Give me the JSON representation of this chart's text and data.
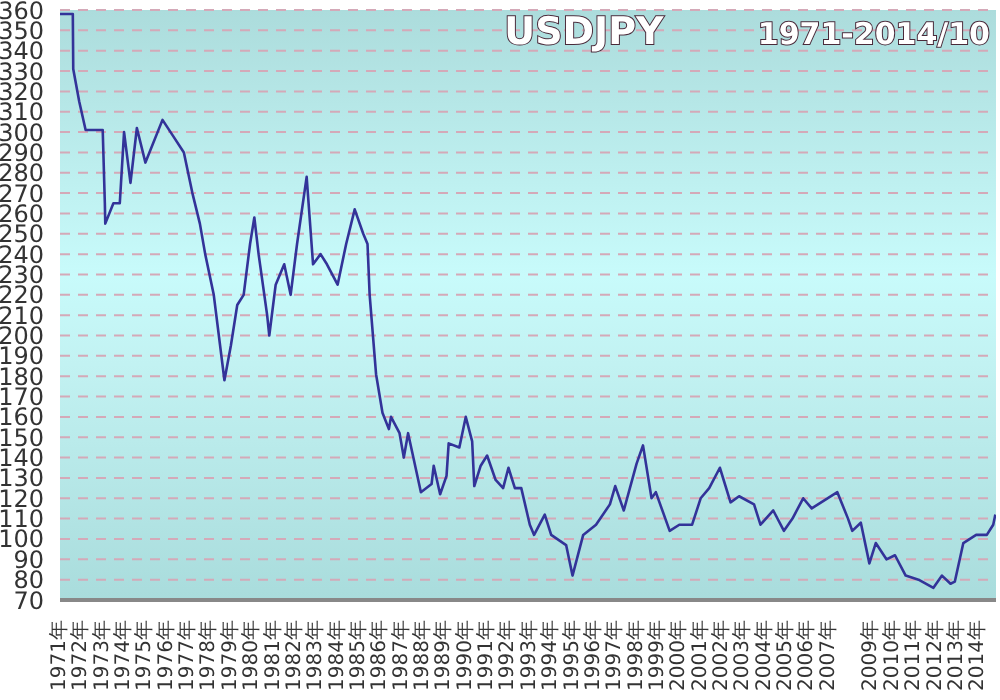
{
  "chart_data": {
    "type": "line",
    "title": "USDJPY",
    "subtitle": "1971-2014/10",
    "x": [
      1971.0,
      1971.6,
      1971.62,
      1971.9,
      1972.2,
      1972.6,
      1973.0,
      1973.1,
      1973.12,
      1973.5,
      1973.8,
      1974.0,
      1974.3,
      1974.6,
      1975.0,
      1975.8,
      1976.3,
      1976.8,
      1977.2,
      1977.55,
      1977.8,
      1978.2,
      1978.7,
      1979.0,
      1979.3,
      1979.6,
      1979.9,
      1980.1,
      1980.3,
      1980.7,
      1980.8,
      1981.1,
      1981.5,
      1981.8,
      1982.1,
      1982.55,
      1982.85,
      1983.2,
      1983.5,
      1984.0,
      1984.4,
      1984.8,
      1985.2,
      1985.4,
      1985.5,
      1985.8,
      1986.1,
      1986.4,
      1986.5,
      1986.9,
      1987.1,
      1987.3,
      1987.9,
      1988.4,
      1988.5,
      1988.8,
      1989.1,
      1989.2,
      1989.7,
      1990.0,
      1990.3,
      1990.4,
      1990.7,
      1991.0,
      1991.4,
      1991.75,
      1992.0,
      1992.3,
      1992.6,
      1993.0,
      1993.2,
      1993.7,
      1994.0,
      1994.7,
      1995.0,
      1995.5,
      1996.1,
      1996.75,
      1997.0,
      1997.4,
      1998.0,
      1998.3,
      1998.7,
      1998.9,
      1999.55,
      2000.0,
      2000.6,
      2001.0,
      2001.4,
      2001.9,
      2002.4,
      2002.8,
      2003.5,
      2003.8,
      2004.4,
      2004.9,
      2005.3,
      2005.8,
      2006.2,
      2007.4,
      2007.9,
      2008.1,
      2008.5,
      2008.9,
      2009.2,
      2009.7,
      2010.1,
      2010.6,
      2011.2,
      2011.9,
      2012.3,
      2012.7,
      2012.9,
      2013.3,
      2013.9,
      2014.4,
      2014.7,
      2014.8
    ],
    "series": [
      {
        "color": "#333399",
        "values": [
          358,
          358,
          331,
          315,
          301,
          301,
          301,
          265,
          255,
          265,
          265,
          300,
          275,
          302,
          285,
          306,
          298,
          290,
          270,
          255,
          240,
          220,
          178,
          195,
          215,
          220,
          245,
          258,
          240,
          210,
          200,
          225,
          235,
          220,
          245,
          278,
          235,
          240,
          235,
          225,
          245,
          262,
          250,
          245,
          220,
          181,
          162,
          154,
          160,
          152,
          140,
          152,
          123,
          127,
          136,
          122,
          131,
          147,
          145,
          160,
          148,
          126,
          136,
          141,
          129,
          125,
          135,
          125,
          125,
          107,
          102,
          112,
          102,
          97,
          82,
          102,
          107,
          117,
          126,
          114,
          137,
          146,
          120,
          123,
          104,
          107,
          107,
          120,
          125,
          135,
          118,
          121,
          117,
          107,
          114,
          104,
          110,
          120,
          115,
          123,
          110,
          104,
          108,
          88,
          98,
          90,
          92,
          82,
          80,
          76,
          82,
          78,
          79,
          98,
          102,
          102,
          107,
          112
        ]
      }
    ],
    "xlim": [
      1971,
      2014.83
    ],
    "xticks": [
      {
        "value": 1971,
        "label": "1971年"
      },
      {
        "value": 1972,
        "label": "1972年"
      },
      {
        "value": 1973,
        "label": "1973年"
      },
      {
        "value": 1974,
        "label": "1974年"
      },
      {
        "value": 1975,
        "label": "1975年"
      },
      {
        "value": 1976,
        "label": "1976年"
      },
      {
        "value": 1977,
        "label": "1977年"
      },
      {
        "value": 1978,
        "label": "1978年"
      },
      {
        "value": 1979,
        "label": "1979年"
      },
      {
        "value": 1980,
        "label": "1980年"
      },
      {
        "value": 1981,
        "label": "1981年"
      },
      {
        "value": 1982,
        "label": "1982年"
      },
      {
        "value": 1983,
        "label": "1983年"
      },
      {
        "value": 1984,
        "label": "1984年"
      },
      {
        "value": 1985,
        "label": "1985年"
      },
      {
        "value": 1986,
        "label": "1986年"
      },
      {
        "value": 1987,
        "label": "1987年"
      },
      {
        "value": 1988,
        "label": "1988年"
      },
      {
        "value": 1989,
        "label": "1989年"
      },
      {
        "value": 1990,
        "label": "1990年"
      },
      {
        "value": 1991,
        "label": "1991年"
      },
      {
        "value": 1992,
        "label": "1992年"
      },
      {
        "value": 1993,
        "label": "1993年"
      },
      {
        "value": 1994,
        "label": "1994年"
      },
      {
        "value": 1995,
        "label": "1995年"
      },
      {
        "value": 1996,
        "label": "1996年"
      },
      {
        "value": 1997,
        "label": "1997年"
      },
      {
        "value": 1998,
        "label": "1998年"
      },
      {
        "value": 1999,
        "label": "1999年"
      },
      {
        "value": 2000,
        "label": "2000年"
      },
      {
        "value": 2001,
        "label": "2001年"
      },
      {
        "value": 2002,
        "label": "2002年"
      },
      {
        "value": 2003,
        "label": "2003年"
      },
      {
        "value": 2004,
        "label": "2004年"
      },
      {
        "value": 2005,
        "label": "2005年"
      },
      {
        "value": 2006,
        "label": "2006年"
      },
      {
        "value": 2007,
        "label": "2007年"
      },
      {
        "value": 2009,
        "label": "2009年"
      },
      {
        "value": 2010,
        "label": "2010年"
      },
      {
        "value": 2011,
        "label": "2011年"
      },
      {
        "value": 2012,
        "label": "2012年"
      },
      {
        "value": 2013,
        "label": "2013年"
      },
      {
        "value": 2014,
        "label": "2014年"
      }
    ],
    "ylim": [
      70,
      360
    ],
    "yticks": [
      70,
      80,
      90,
      100,
      110,
      120,
      130,
      140,
      150,
      160,
      170,
      180,
      190,
      200,
      210,
      220,
      230,
      240,
      250,
      260,
      270,
      280,
      290,
      300,
      310,
      320,
      330,
      340,
      350,
      360
    ],
    "grid": "y",
    "marker": "none",
    "line_style": "solid"
  }
}
